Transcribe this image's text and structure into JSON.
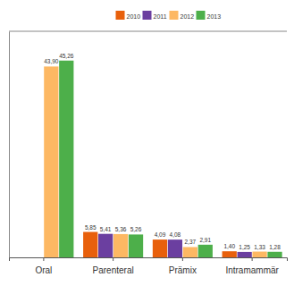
{
  "chart_data": {
    "type": "bar",
    "categories": [
      "Oral",
      "Parenteral",
      "Prämix",
      "Intramammär"
    ],
    "series": [
      {
        "name": "2010",
        "color": "#e8600c",
        "values": [
          null,
          5.85,
          4.09,
          1.4
        ],
        "value_labels": [
          null,
          "5,85",
          "4,09",
          "1,40"
        ]
      },
      {
        "name": "2011",
        "color": "#6b3fa0",
        "values": [
          null,
          5.41,
          4.08,
          1.25
        ],
        "value_labels": [
          null,
          "5,41",
          "4,08",
          "1,25"
        ]
      },
      {
        "name": "2012",
        "color": "#fdb863",
        "values": [
          43.9,
          5.36,
          2.37,
          1.33
        ],
        "value_labels": [
          "43,90",
          "5,36",
          "2,37",
          "1,33"
        ]
      },
      {
        "name": "2013",
        "color": "#4daf4a",
        "values": [
          45.26,
          5.26,
          2.91,
          1.28
        ],
        "value_labels": [
          "45,26",
          "5,26",
          "2,91",
          "1,28"
        ]
      }
    ],
    "ylim": [
      0,
      52
    ],
    "yticks": [],
    "grid": false,
    "legend": "top",
    "data_labels": true,
    "tick_labels": "x"
  }
}
